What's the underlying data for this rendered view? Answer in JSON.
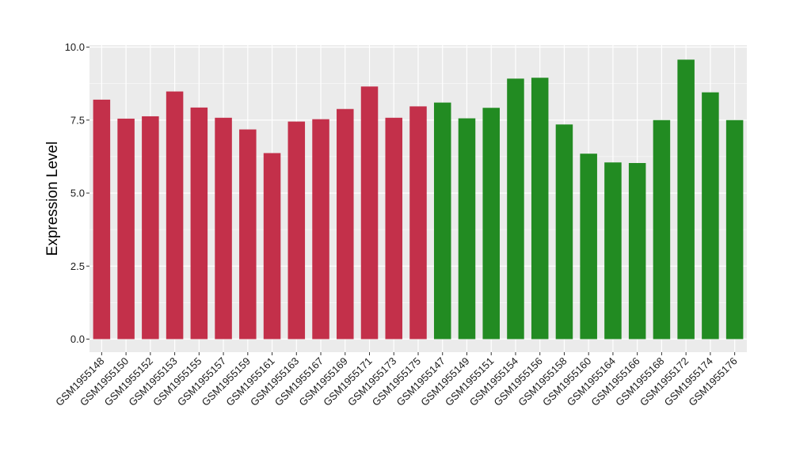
{
  "chart_data": {
    "type": "bar",
    "title": "",
    "xlabel": "",
    "ylabel": "Expression Level",
    "ylim": [
      0,
      10
    ],
    "yticks": [
      0.0,
      2.5,
      5.0,
      7.5,
      10.0
    ],
    "ytick_labels": [
      "0.0",
      "2.5",
      "5.0",
      "7.5",
      "10.0"
    ],
    "grid": true,
    "legend": "none",
    "colors": {
      "group1": "#C3304A",
      "group2": "#228B22",
      "panel": "#EBEBEB",
      "grid": "#FFFFFF"
    },
    "categories": [
      "GSM1955148",
      "GSM1955150",
      "GSM1955152",
      "GSM1955153",
      "GSM1955155",
      "GSM1955157",
      "GSM1955159",
      "GSM1955161",
      "GSM1955163",
      "GSM1955167",
      "GSM1955169",
      "GSM1955171",
      "GSM1955173",
      "GSM1955175",
      "GSM1955147",
      "GSM1955149",
      "GSM1955151",
      "GSM1955154",
      "GSM1955156",
      "GSM1955158",
      "GSM1955160",
      "GSM1955164",
      "GSM1955166",
      "GSM1955168",
      "GSM1955172",
      "GSM1955174",
      "GSM1955176"
    ],
    "values": [
      8.2,
      7.55,
      7.63,
      8.48,
      7.93,
      7.58,
      7.18,
      6.37,
      7.45,
      7.53,
      7.88,
      8.65,
      7.58,
      7.97,
      8.1,
      7.56,
      7.92,
      8.92,
      8.95,
      7.35,
      6.35,
      6.05,
      6.03,
      7.5,
      9.57,
      8.45,
      7.5
    ],
    "bar_groups": [
      "group1",
      "group1",
      "group1",
      "group1",
      "group1",
      "group1",
      "group1",
      "group1",
      "group1",
      "group1",
      "group1",
      "group1",
      "group1",
      "group1",
      "group2",
      "group2",
      "group2",
      "group2",
      "group2",
      "group2",
      "group2",
      "group2",
      "group2",
      "group2",
      "group2",
      "group2",
      "group2"
    ]
  }
}
